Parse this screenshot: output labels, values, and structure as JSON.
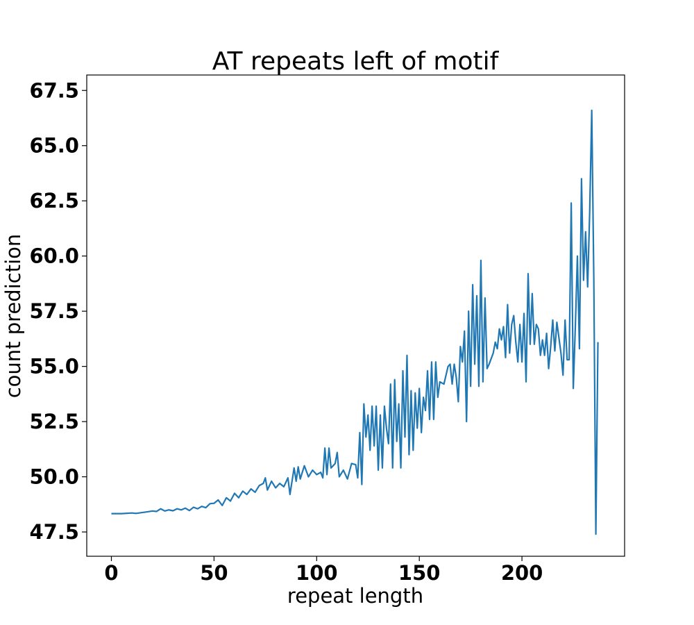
{
  "chart_data": {
    "type": "line",
    "title": "AT repeats left of motif",
    "xlabel": "repeat length",
    "ylabel": "count prediction",
    "xlim": [
      -12,
      250
    ],
    "ylim": [
      46.4,
      68.2
    ],
    "xticks": [
      0,
      50,
      100,
      150,
      200
    ],
    "xtick_labels": [
      "0",
      "50",
      "100",
      "150",
      "200"
    ],
    "yticks": [
      47.5,
      50.0,
      52.5,
      55.0,
      57.5,
      60.0,
      62.5,
      65.0,
      67.5
    ],
    "ytick_labels": [
      "47.5",
      "50.0",
      "52.5",
      "55.0",
      "57.5",
      "60.0",
      "62.5",
      "65.0",
      "67.5"
    ],
    "grid": false,
    "series": [
      {
        "color": "#1f77b4",
        "points": [
          [
            0,
            48.33
          ],
          [
            5,
            48.33
          ],
          [
            10,
            48.36
          ],
          [
            12,
            48.34
          ],
          [
            15,
            48.38
          ],
          [
            18,
            48.42
          ],
          [
            20,
            48.45
          ],
          [
            22,
            48.43
          ],
          [
            24,
            48.55
          ],
          [
            26,
            48.45
          ],
          [
            28,
            48.5
          ],
          [
            30,
            48.46
          ],
          [
            32,
            48.55
          ],
          [
            34,
            48.5
          ],
          [
            36,
            48.58
          ],
          [
            38,
            48.47
          ],
          [
            40,
            48.62
          ],
          [
            42,
            48.55
          ],
          [
            44,
            48.66
          ],
          [
            46,
            48.6
          ],
          [
            48,
            48.78
          ],
          [
            50,
            48.8
          ],
          [
            52,
            48.95
          ],
          [
            54,
            48.7
          ],
          [
            56,
            49.05
          ],
          [
            58,
            48.9
          ],
          [
            60,
            49.25
          ],
          [
            62,
            49.05
          ],
          [
            64,
            49.35
          ],
          [
            66,
            49.2
          ],
          [
            68,
            49.45
          ],
          [
            70,
            49.3
          ],
          [
            72,
            49.6
          ],
          [
            74,
            49.7
          ],
          [
            75,
            49.95
          ],
          [
            76,
            49.4
          ],
          [
            78,
            49.8
          ],
          [
            80,
            49.5
          ],
          [
            82,
            49.7
          ],
          [
            84,
            49.55
          ],
          [
            86,
            49.95
          ],
          [
            87,
            49.2
          ],
          [
            89,
            50.4
          ],
          [
            90,
            49.8
          ],
          [
            91,
            50.45
          ],
          [
            92,
            49.9
          ],
          [
            94,
            50.5
          ],
          [
            96,
            50.0
          ],
          [
            98,
            50.3
          ],
          [
            100,
            50.1
          ],
          [
            102,
            50.2
          ],
          [
            103,
            49.95
          ],
          [
            104,
            51.3
          ],
          [
            105,
            50.1
          ],
          [
            106,
            51.3
          ],
          [
            107,
            50.4
          ],
          [
            109,
            50.6
          ],
          [
            110,
            51.1
          ],
          [
            111,
            50.0
          ],
          [
            113,
            50.3
          ],
          [
            115,
            49.9
          ],
          [
            117,
            50.6
          ],
          [
            119,
            50.55
          ],
          [
            120,
            49.95
          ],
          [
            121,
            52.0
          ],
          [
            122,
            49.65
          ],
          [
            123,
            53.3
          ],
          [
            124,
            51.8
          ],
          [
            125,
            52.8
          ],
          [
            126,
            51.2
          ],
          [
            127,
            53.2
          ],
          [
            128,
            51.4
          ],
          [
            129,
            53.2
          ],
          [
            130,
            50.3
          ],
          [
            131,
            52.8
          ],
          [
            132,
            50.4
          ],
          [
            133,
            53.2
          ],
          [
            134,
            52.2
          ],
          [
            135,
            51.5
          ],
          [
            136,
            54.2
          ],
          [
            137,
            50.4
          ],
          [
            138,
            54.4
          ],
          [
            139,
            51.6
          ],
          [
            140,
            53.3
          ],
          [
            141,
            50.4
          ],
          [
            142,
            54.8
          ],
          [
            143,
            51.8
          ],
          [
            144,
            55.5
          ],
          [
            145,
            51.0
          ],
          [
            146,
            53.9
          ],
          [
            147,
            51.2
          ],
          [
            148,
            53.8
          ],
          [
            149,
            52.2
          ],
          [
            150,
            54.0
          ],
          [
            151,
            52.0
          ],
          [
            152,
            53.6
          ],
          [
            153,
            53.0
          ],
          [
            154,
            54.8
          ],
          [
            155,
            52.6
          ],
          [
            156,
            55.2
          ],
          [
            157,
            52.6
          ],
          [
            158,
            55.2
          ],
          [
            159,
            53.6
          ],
          [
            160,
            54.3
          ],
          [
            162,
            54.2
          ],
          [
            164,
            55.0
          ],
          [
            165,
            55.1
          ],
          [
            166,
            54.2
          ],
          [
            167,
            55.1
          ],
          [
            168,
            54.5
          ],
          [
            169,
            53.4
          ],
          [
            170,
            55.9
          ],
          [
            171,
            55.2
          ],
          [
            172,
            56.6
          ],
          [
            173,
            52.5
          ],
          [
            174,
            57.5
          ],
          [
            175,
            54.1
          ],
          [
            176,
            58.7
          ],
          [
            177,
            55.1
          ],
          [
            178,
            58.2
          ],
          [
            179,
            54.1
          ],
          [
            180,
            59.8
          ],
          [
            181,
            54.3
          ],
          [
            182,
            58.1
          ],
          [
            183,
            54.9
          ],
          [
            184,
            55.1
          ],
          [
            186,
            55.6
          ],
          [
            187,
            56.1
          ],
          [
            188,
            55.8
          ],
          [
            189,
            56.7
          ],
          [
            190,
            56.2
          ],
          [
            191,
            56.8
          ],
          [
            192,
            55.4
          ],
          [
            193,
            57.8
          ],
          [
            194,
            55.6
          ],
          [
            195,
            56.9
          ],
          [
            196,
            57.3
          ],
          [
            197,
            56.1
          ],
          [
            198,
            55.2
          ],
          [
            199,
            56.9
          ],
          [
            200,
            55.2
          ],
          [
            201,
            57.4
          ],
          [
            202,
            54.3
          ],
          [
            203,
            59.2
          ],
          [
            204,
            56.0
          ],
          [
            205,
            58.3
          ],
          [
            206,
            56.0
          ],
          [
            207,
            56.9
          ],
          [
            208,
            56.7
          ],
          [
            209,
            55.5
          ],
          [
            210,
            56.2
          ],
          [
            211,
            55.5
          ],
          [
            212,
            56.5
          ],
          [
            213,
            54.9
          ],
          [
            214,
            55.9
          ],
          [
            215,
            57.1
          ],
          [
            216,
            55.7
          ],
          [
            217,
            57.0
          ],
          [
            218,
            56.3
          ],
          [
            219,
            55.6
          ],
          [
            220,
            54.6
          ],
          [
            221,
            57.1
          ],
          [
            222,
            55.3
          ],
          [
            223,
            55.3
          ],
          [
            224,
            62.4
          ],
          [
            225,
            54.0
          ],
          [
            226,
            56.8
          ],
          [
            227,
            60.0
          ],
          [
            228,
            55.8
          ],
          [
            229,
            63.5
          ],
          [
            230,
            58.9
          ],
          [
            231,
            61.1
          ],
          [
            232,
            58.6
          ],
          [
            233,
            62.0
          ],
          [
            234,
            66.6
          ],
          [
            235,
            59.0
          ],
          [
            236,
            47.4
          ],
          [
            237,
            56.1
          ]
        ]
      }
    ]
  }
}
